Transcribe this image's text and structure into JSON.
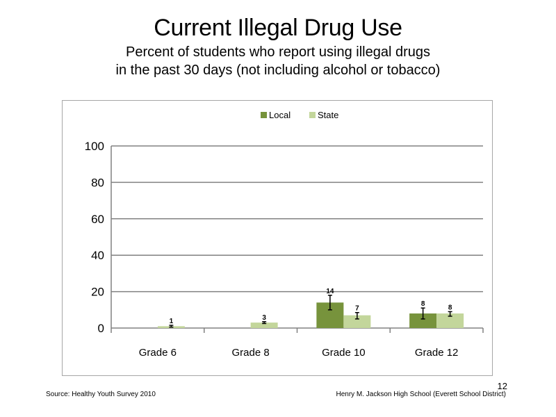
{
  "slide": {
    "title": "Current Illegal Drug Use",
    "subtitle_line1": "Percent of students who report using illegal drugs",
    "subtitle_line2": "in the past 30 days (not including  alcohol or tobacco)",
    "source": "Source: Healthy Youth Survey 2010",
    "school": "Henry M. Jackson High School (Everett School District)",
    "page_number": "12"
  },
  "colors": {
    "local": "#77933c",
    "state": "#c3d69b",
    "gridline": "#808080",
    "error_bar": "#000000"
  },
  "chart_data": {
    "type": "bar",
    "categories": [
      "Grade 6",
      "Grade 8",
      "Grade 10",
      "Grade 12"
    ],
    "series": [
      {
        "name": "Local",
        "values": [
          null,
          null,
          14,
          8
        ],
        "labels": [
          "",
          "",
          "14",
          "8"
        ],
        "error": [
          null,
          null,
          [
            10,
            18
          ],
          [
            5,
            11
          ]
        ]
      },
      {
        "name": "State",
        "values": [
          1,
          3,
          7,
          8
        ],
        "labels": [
          "1",
          "3",
          "7",
          "8"
        ],
        "error": [
          [
            0.5,
            1.5
          ],
          [
            2.5,
            3.5
          ],
          [
            5,
            8.5
          ],
          [
            6.5,
            9
          ]
        ]
      }
    ],
    "yticks": [
      0,
      20,
      40,
      60,
      80,
      100
    ],
    "ylim": [
      0,
      100
    ],
    "grid": true,
    "legend": "top"
  }
}
